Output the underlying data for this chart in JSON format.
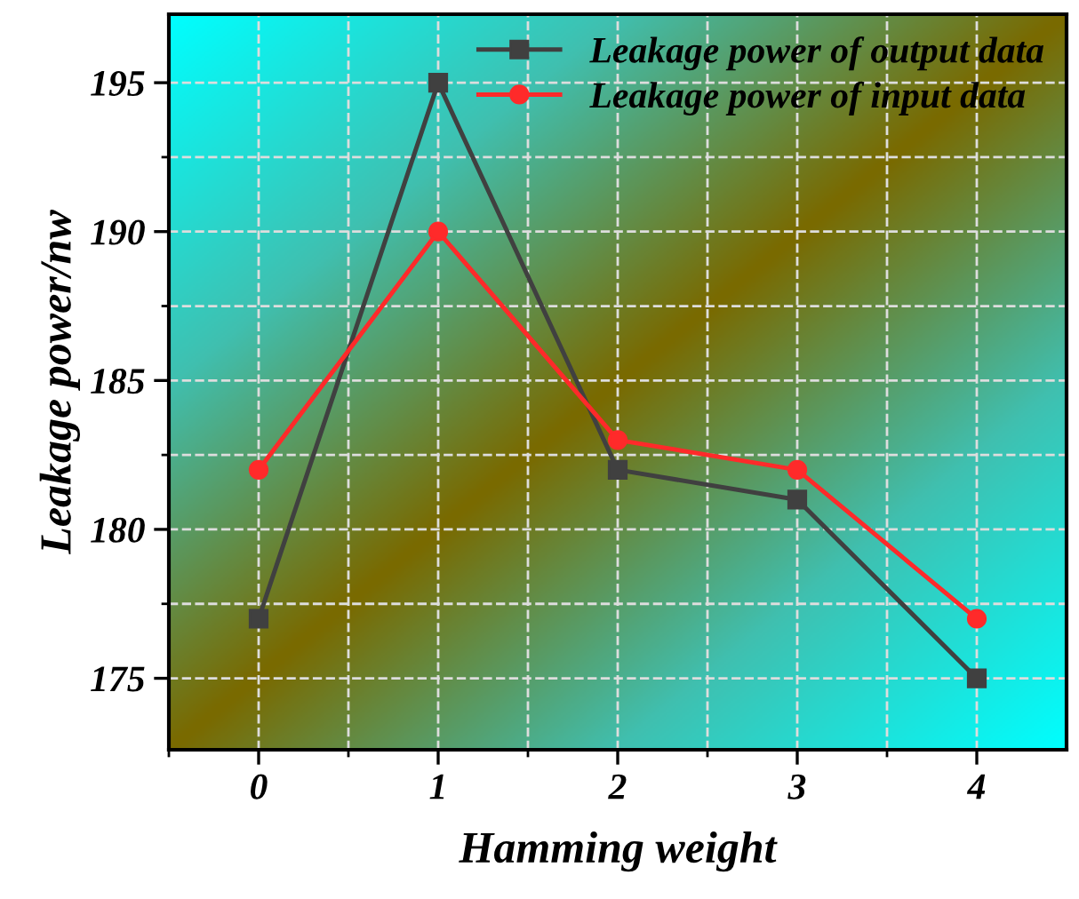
{
  "chart_data": {
    "type": "line",
    "xlabel": "Hamming weight",
    "ylabel": "Leakage power/nw",
    "x": [
      0,
      1,
      2,
      3,
      4
    ],
    "series": [
      {
        "name": "Leakage power of output data",
        "color": "#404040",
        "marker": "square",
        "values": [
          177,
          195,
          182,
          181,
          175
        ]
      },
      {
        "name": "Leakage power of input data",
        "color": "#ff2a2a",
        "marker": "circle",
        "values": [
          182,
          190,
          183,
          182,
          177
        ]
      }
    ],
    "xlim": [
      -0.5,
      4.5
    ],
    "xticks": [
      {
        "value": -0.5,
        "label": null
      },
      0,
      {
        "value": 0.5,
        "label": null
      },
      1,
      {
        "value": 1.5,
        "label": null
      },
      2,
      {
        "value": 2.5,
        "label": null
      },
      3,
      {
        "value": 3.5,
        "label": null
      },
      4
    ],
    "ylim": [
      172.6,
      197.3
    ],
    "yticks": [
      175,
      {
        "value": 177.5,
        "label": null
      },
      180,
      {
        "value": 182.5,
        "label": null
      },
      185,
      {
        "value": 187.5,
        "label": null
      },
      190,
      {
        "value": 192.5,
        "label": null
      },
      195
    ],
    "grid": true,
    "legend": "top right",
    "line_style": "solid"
  }
}
